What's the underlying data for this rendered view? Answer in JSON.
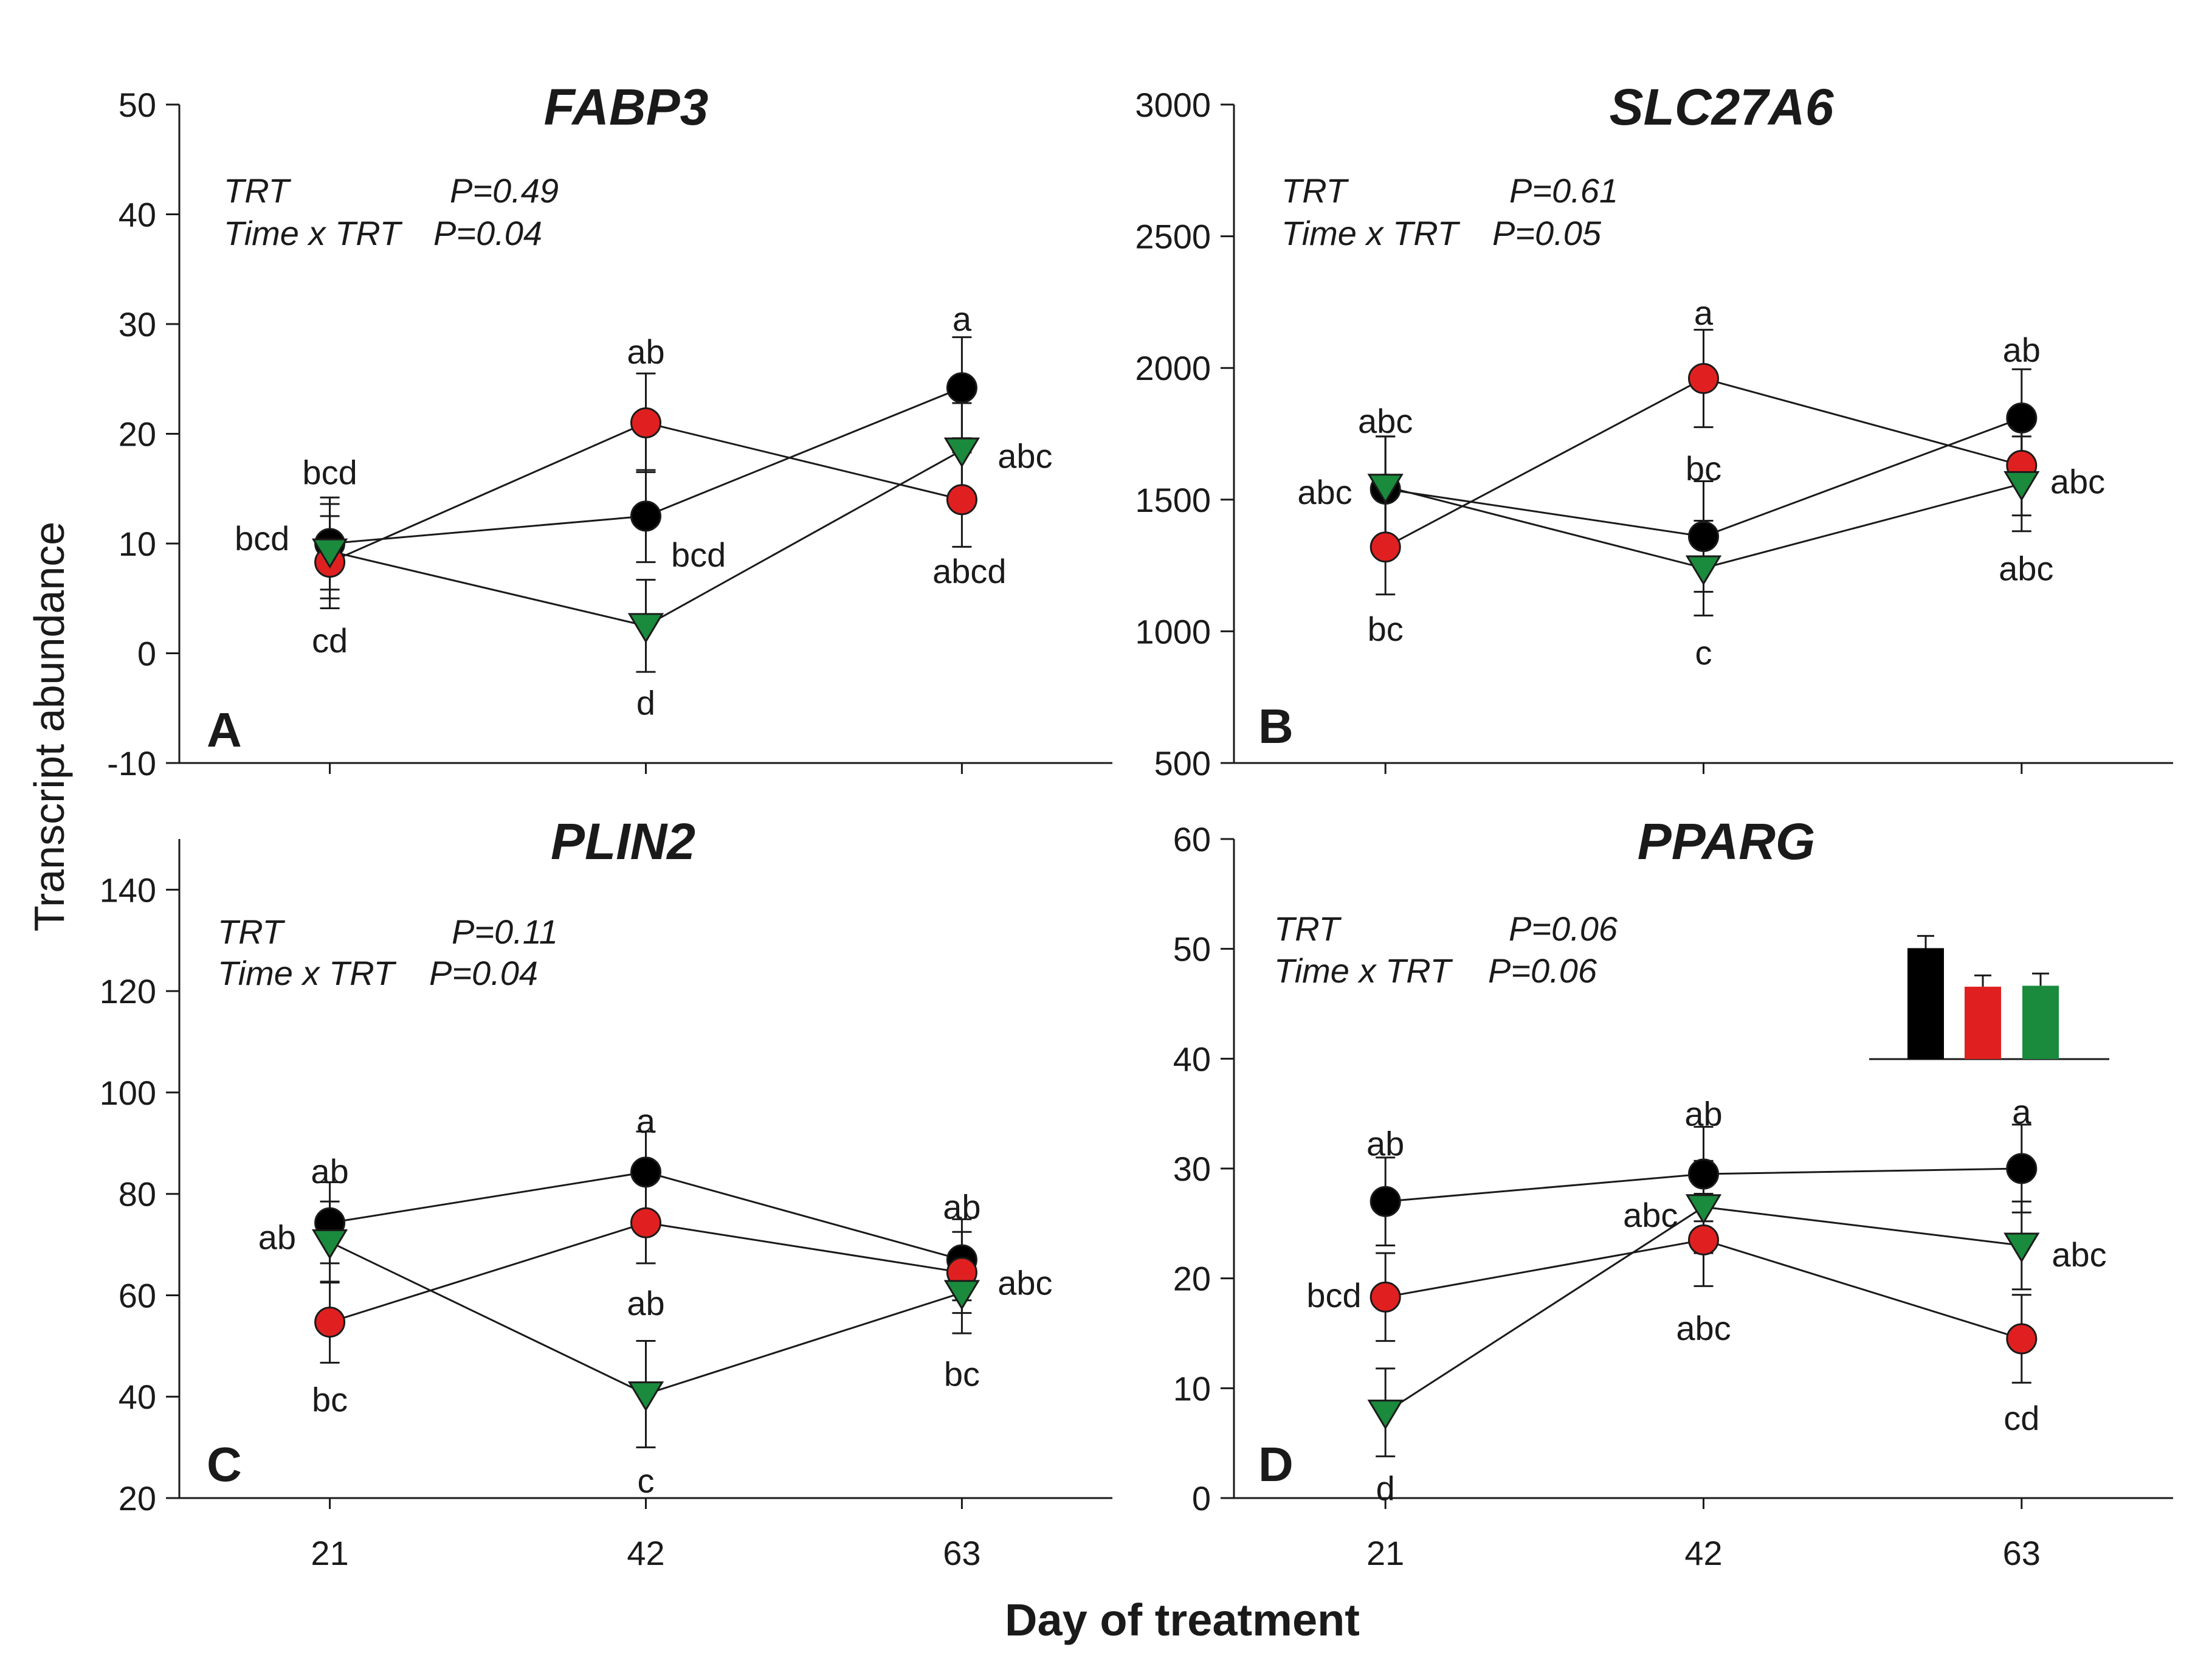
{
  "figure": {
    "ylabel": "Transcript abundance",
    "xlabel": "Day of treatment"
  },
  "chart_data": [
    {
      "type": "line",
      "panel": "A",
      "title": "FABP3",
      "stats": [
        "TRT",
        "P=0.49",
        "Time x TRT",
        "P=0.04"
      ],
      "ylim": [
        -10,
        50
      ],
      "yticks": [
        -10,
        0,
        10,
        20,
        30,
        40,
        50
      ],
      "x": [
        21,
        42,
        63
      ],
      "xticks": [],
      "series": [
        {
          "name": "black",
          "color": "#000000",
          "marker": "circle",
          "values": [
            10,
            12.5,
            24.2
          ],
          "errors": [
            4.2,
            4.2,
            4.6
          ]
        },
        {
          "name": "red",
          "color": "#e02020",
          "marker": "circle",
          "values": [
            8.3,
            21,
            14
          ],
          "errors": [
            4.2,
            4.5,
            4.3
          ]
        },
        {
          "name": "green",
          "color": "#1a8a3c",
          "marker": "triangle-down",
          "values": [
            9.3,
            2.5,
            18.5
          ],
          "errors": [
            4.3,
            4.2,
            4.3
          ]
        }
      ],
      "annotations": [
        {
          "text": "bcd",
          "x": 21,
          "y": 16.5
        },
        {
          "text": "bcd",
          "x": 16.5,
          "y": 10.5
        },
        {
          "text": "cd",
          "x": 21,
          "y": 1.2
        },
        {
          "text": "ab",
          "x": 42,
          "y": 27.5
        },
        {
          "text": "bcd",
          "x": 45.5,
          "y": 9
        },
        {
          "text": "d",
          "x": 42,
          "y": -4.5
        },
        {
          "text": "a",
          "x": 63,
          "y": 30.5
        },
        {
          "text": "abc",
          "x": 67.2,
          "y": 18
        },
        {
          "text": "abcd",
          "x": 63.5,
          "y": 7.5
        }
      ]
    },
    {
      "type": "line",
      "panel": "B",
      "title": "SLC27A6",
      "stats": [
        "TRT",
        "P=0.61",
        "Time x TRT",
        "P=0.05"
      ],
      "ylim": [
        500,
        3000
      ],
      "yticks": [
        500,
        1000,
        1500,
        2000,
        2500,
        3000
      ],
      "x": [
        21,
        42,
        63
      ],
      "xticks": [],
      "series": [
        {
          "name": "black",
          "color": "#000000",
          "marker": "circle",
          "values": [
            1540,
            1360,
            1810
          ],
          "errors": [
            200,
            210,
            185
          ]
        },
        {
          "name": "red",
          "color": "#e02020",
          "marker": "circle",
          "values": [
            1320,
            1960,
            1630
          ],
          "errors": [
            180,
            185,
            190
          ]
        },
        {
          "name": "green",
          "color": "#1a8a3c",
          "marker": "triangle-down",
          "values": [
            1550,
            1240,
            1560
          ],
          "errors": [
            190,
            180,
            180
          ]
        }
      ],
      "annotations": [
        {
          "text": "abc",
          "x": 21,
          "y": 1800
        },
        {
          "text": "abc",
          "x": 17,
          "y": 1530
        },
        {
          "text": "bc",
          "x": 21,
          "y": 1010
        },
        {
          "text": "a",
          "x": 42,
          "y": 2210
        },
        {
          "text": "bc",
          "x": 42,
          "y": 1620
        },
        {
          "text": "c",
          "x": 42,
          "y": 920
        },
        {
          "text": "ab",
          "x": 63,
          "y": 2070
        },
        {
          "text": "abc",
          "x": 66.7,
          "y": 1570
        },
        {
          "text": "abc",
          "x": 63.3,
          "y": 1240
        }
      ]
    },
    {
      "type": "line",
      "panel": "C",
      "title": "PLIN2",
      "stats": [
        "TRT",
        "P=0.11",
        "Time x TRT",
        "P=0.04"
      ],
      "ylim": [
        20,
        150
      ],
      "yticks": [
        20,
        40,
        60,
        80,
        100,
        120,
        140
      ],
      "x": [
        21,
        42,
        63
      ],
      "xticks": [
        21,
        42,
        63
      ],
      "series": [
        {
          "name": "black",
          "color": "#000000",
          "marker": "circle",
          "values": [
            74.3,
            84.3,
            67
          ],
          "errors": [
            8,
            8,
            8
          ]
        },
        {
          "name": "red",
          "color": "#e02020",
          "marker": "circle",
          "values": [
            54.7,
            74.3,
            64.5
          ],
          "errors": [
            8,
            8,
            8
          ]
        },
        {
          "name": "green",
          "color": "#1a8a3c",
          "marker": "triangle-down",
          "values": [
            70.5,
            40.5,
            60.5
          ],
          "errors": [
            8,
            10.5,
            8
          ]
        }
      ],
      "annotations": [
        {
          "text": "ab",
          "x": 21,
          "y": 84.5
        },
        {
          "text": "ab",
          "x": 17.5,
          "y": 71.5
        },
        {
          "text": "bc",
          "x": 21,
          "y": 39.5
        },
        {
          "text": "a",
          "x": 42,
          "y": 94.5
        },
        {
          "text": "ab",
          "x": 42,
          "y": 58.5
        },
        {
          "text": "c",
          "x": 42,
          "y": 23.5
        },
        {
          "text": "ab",
          "x": 63,
          "y": 77.5
        },
        {
          "text": "abc",
          "x": 67.2,
          "y": 62.5
        },
        {
          "text": "bc",
          "x": 63,
          "y": 44.5
        }
      ]
    },
    {
      "type": "line",
      "panel": "D",
      "title": "PPARG",
      "stats": [
        "TRT",
        "P=0.06",
        "Time x TRT",
        "P=0.06"
      ],
      "ylim": [
        0,
        60
      ],
      "yticks": [
        0,
        10,
        20,
        30,
        40,
        50,
        60
      ],
      "x": [
        21,
        42,
        63
      ],
      "xticks": [
        21,
        42,
        63
      ],
      "series": [
        {
          "name": "black",
          "color": "#000000",
          "marker": "circle",
          "values": [
            27,
            29.5,
            30
          ],
          "errors": [
            4,
            4.3,
            4
          ]
        },
        {
          "name": "red",
          "color": "#e02020",
          "marker": "circle",
          "values": [
            18.3,
            23.5,
            14.5
          ],
          "errors": [
            4,
            4.2,
            4
          ]
        },
        {
          "name": "green",
          "color": "#1a8a3c",
          "marker": "triangle-down",
          "values": [
            7.8,
            26.5,
            23
          ],
          "errors": [
            4,
            4.2,
            4
          ]
        }
      ],
      "inset": {
        "type": "bar",
        "values": [
          51.8,
          47.7,
          47.8
        ],
        "errors": [
          1.3,
          1.2,
          1.3
        ],
        "ylim": [
          40,
          55
        ],
        "colors": [
          "#000000",
          "#e02020",
          "#1a8a3c"
        ]
      },
      "annotations": [
        {
          "text": "ab",
          "x": 21,
          "y": 32.3
        },
        {
          "text": "bcd",
          "x": 17.6,
          "y": 18.5
        },
        {
          "text": "d",
          "x": 21,
          "y": 0.9
        },
        {
          "text": "ab",
          "x": 42,
          "y": 35
        },
        {
          "text": "abc",
          "x": 38.5,
          "y": 25.8
        },
        {
          "text": "abc",
          "x": 42,
          "y": 15.5
        },
        {
          "text": "a",
          "x": 63,
          "y": 35.2
        },
        {
          "text": "abc",
          "x": 66.8,
          "y": 22.2
        },
        {
          "text": "cd",
          "x": 63,
          "y": 7.3
        }
      ]
    }
  ]
}
